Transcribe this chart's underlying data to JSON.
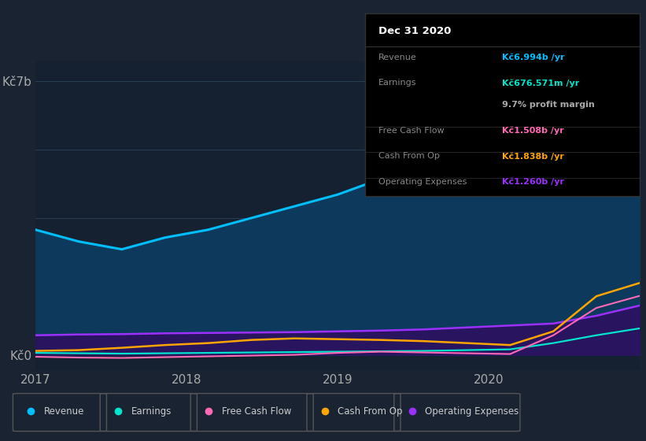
{
  "bg_color": "#1a2332",
  "plot_bg_color": "#152030",
  "grid_color": "#2a3f55",
  "xtick_labels": [
    "2017",
    "2018",
    "2019",
    "2020"
  ],
  "series": {
    "Revenue": {
      "color": "#00bfff",
      "fill_color": "#0d3a5c",
      "values": [
        3.2,
        2.9,
        2.7,
        3.0,
        3.2,
        3.5,
        3.8,
        4.1,
        4.5,
        4.8,
        5.2,
        5.6,
        6.0,
        6.5,
        6.994
      ]
    },
    "Earnings": {
      "color": "#00e5cc",
      "values": [
        0.05,
        0.04,
        0.03,
        0.04,
        0.05,
        0.06,
        0.07,
        0.08,
        0.09,
        0.1,
        0.12,
        0.14,
        0.3,
        0.5,
        0.676
      ]
    },
    "FreeCashFlow": {
      "color": "#ff69b4",
      "values": [
        -0.05,
        -0.07,
        -0.08,
        -0.06,
        -0.04,
        -0.02,
        0.0,
        0.05,
        0.08,
        0.06,
        0.04,
        0.02,
        0.5,
        1.2,
        1.508
      ]
    },
    "CashFromOp": {
      "color": "#ffa500",
      "values": [
        0.1,
        0.12,
        0.18,
        0.25,
        0.3,
        0.38,
        0.42,
        0.4,
        0.38,
        0.35,
        0.3,
        0.25,
        0.6,
        1.5,
        1.838
      ]
    },
    "OperatingExpenses": {
      "color": "#9b30ff",
      "fill_color": "#2d1060",
      "values": [
        0.5,
        0.52,
        0.53,
        0.55,
        0.56,
        0.57,
        0.58,
        0.6,
        0.62,
        0.65,
        0.7,
        0.75,
        0.8,
        1.0,
        1.26
      ]
    }
  },
  "tooltip": {
    "title": "Dec 31 2020",
    "rows": [
      {
        "label": "Revenue",
        "value": "Kč6.994b /yr",
        "value_color": "#00bfff",
        "divider_after": false
      },
      {
        "label": "Earnings",
        "value": "Kč676.571m /yr",
        "value_color": "#00e5cc",
        "divider_after": false
      },
      {
        "label": "",
        "value": "9.7% profit margin",
        "value_color": "#ffffff",
        "divider_after": true
      },
      {
        "label": "Free Cash Flow",
        "value": "Kč1.508b /yr",
        "value_color": "#ff69b4",
        "divider_after": true
      },
      {
        "label": "Cash From Op",
        "value": "Kč1.838b /yr",
        "value_color": "#ffa500",
        "divider_after": true
      },
      {
        "label": "Operating Expenses",
        "value": "Kč1.260b /yr",
        "value_color": "#9b30ff",
        "divider_after": false
      }
    ]
  },
  "legend": [
    {
      "label": "Revenue",
      "color": "#00bfff"
    },
    {
      "label": "Earnings",
      "color": "#00e5cc"
    },
    {
      "label": "Free Cash Flow",
      "color": "#ff69b4"
    },
    {
      "label": "Cash From Op",
      "color": "#ffa500"
    },
    {
      "label": "Operating Expenses",
      "color": "#9b30ff"
    }
  ]
}
